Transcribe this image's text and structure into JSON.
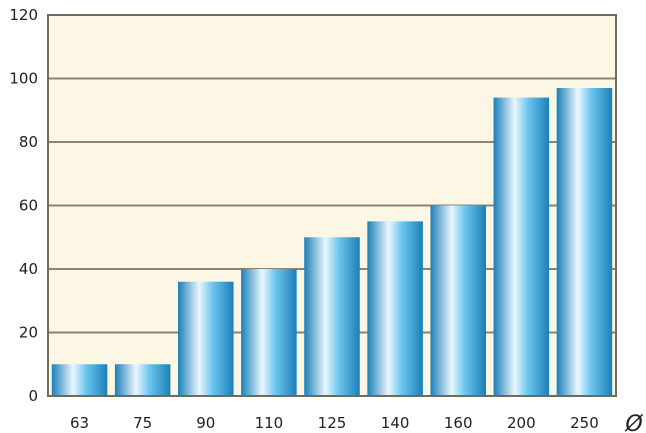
{
  "chart_data": {
    "type": "bar",
    "title": "",
    "xlabel": "Ø",
    "ylabel": "",
    "categories": [
      "63",
      "75",
      "90",
      "110",
      "125",
      "140",
      "160",
      "200",
      "250"
    ],
    "values": [
      10,
      10,
      36,
      40,
      50,
      55,
      60,
      94,
      97
    ],
    "ylim": [
      0,
      120
    ],
    "yticks": [
      0,
      20,
      40,
      60,
      80,
      100,
      120
    ],
    "grid": true,
    "legend": "none",
    "colors": {
      "plot_background": "#fcf7e4",
      "frame": "#6e6a5c",
      "gridline": "#8a8470",
      "bar_light": "#eaf7ff",
      "bar_mid": "#6cc6ee",
      "bar_dark": "#1b7fb8"
    }
  }
}
